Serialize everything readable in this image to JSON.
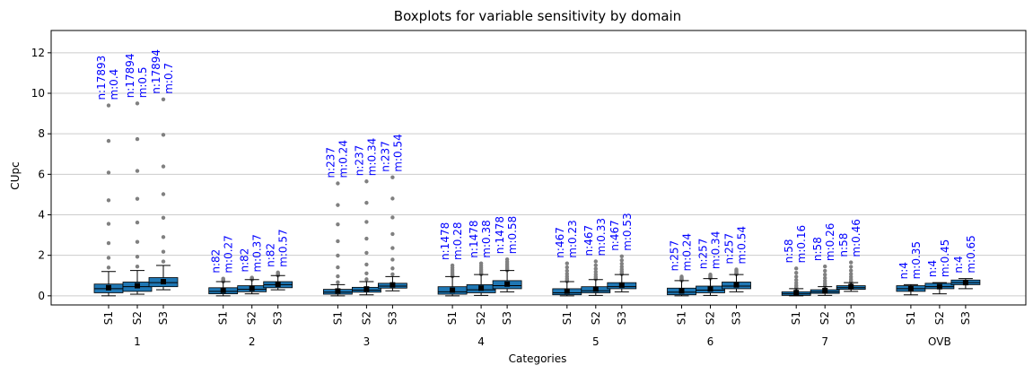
{
  "chart_data": {
    "type": "box",
    "title": "Boxplots for variable sensitivity by domain",
    "xlabel": "Categories",
    "ylabel": "CUpc",
    "ylim": [
      -0.45,
      13.1
    ],
    "yticks": [
      0,
      2,
      4,
      6,
      8,
      10,
      12
    ],
    "grid": "y",
    "categories": [
      "1",
      "2",
      "3",
      "4",
      "5",
      "6",
      "7",
      "OVB"
    ],
    "series_labels": [
      "S1",
      "S2",
      "S3"
    ],
    "colors": {
      "box": "#1f77b4",
      "outlier": "#808080",
      "mean_marker": "#000000",
      "annotation": "#0000ff",
      "grid": "#cccccc"
    },
    "groups": [
      {
        "category": "1",
        "boxes": [
          {
            "series": "S1",
            "n": "17893",
            "m": "0.4",
            "q1": 0.15,
            "median": 0.35,
            "q3": 0.58,
            "whisker_low": 0.0,
            "whisker_high": 1.2,
            "outlier_max": 9.4
          },
          {
            "series": "S2",
            "n": "17894",
            "m": "0.5",
            "q1": 0.22,
            "median": 0.45,
            "q3": 0.68,
            "whisker_low": 0.08,
            "whisker_high": 1.25,
            "outlier_max": 9.5
          },
          {
            "series": "S3",
            "n": "17894",
            "m": "0.7",
            "q1": 0.45,
            "median": 0.65,
            "q3": 0.9,
            "whisker_low": 0.3,
            "whisker_high": 1.5,
            "outlier_max": 9.7
          }
        ]
      },
      {
        "category": "2",
        "boxes": [
          {
            "series": "S1",
            "n": "82",
            "m": "0.27",
            "q1": 0.1,
            "median": 0.22,
            "q3": 0.4,
            "whisker_low": 0.0,
            "whisker_high": 0.7,
            "outlier_max": 0.85
          },
          {
            "series": "S2",
            "n": "82",
            "m": "0.37",
            "q1": 0.2,
            "median": 0.32,
            "q3": 0.5,
            "whisker_low": 0.1,
            "whisker_high": 0.8,
            "outlier_max": 0.9
          },
          {
            "series": "S3",
            "n": "82",
            "m": "0.57",
            "q1": 0.4,
            "median": 0.55,
            "q3": 0.7,
            "whisker_low": 0.3,
            "whisker_high": 1.0,
            "outlier_max": 1.15
          }
        ]
      },
      {
        "category": "3",
        "boxes": [
          {
            "series": "S1",
            "n": "237",
            "m": "0.24",
            "q1": 0.08,
            "median": 0.18,
            "q3": 0.32,
            "whisker_low": 0.0,
            "whisker_high": 0.55,
            "outlier_max": 5.55
          },
          {
            "series": "S2",
            "n": "237",
            "m": "0.34",
            "q1": 0.18,
            "median": 0.28,
            "q3": 0.42,
            "whisker_low": 0.05,
            "whisker_high": 0.7,
            "outlier_max": 5.65
          },
          {
            "series": "S3",
            "n": "237",
            "m": "0.54",
            "q1": 0.38,
            "median": 0.48,
            "q3": 0.62,
            "whisker_low": 0.25,
            "whisker_high": 0.95,
            "outlier_max": 5.85
          }
        ]
      },
      {
        "category": "4",
        "boxes": [
          {
            "series": "S1",
            "n": "1478",
            "m": "0.28",
            "q1": 0.08,
            "median": 0.2,
            "q3": 0.45,
            "whisker_low": 0.0,
            "whisker_high": 0.95,
            "outlier_max": 1.5
          },
          {
            "series": "S2",
            "n": "1478",
            "m": "0.38",
            "q1": 0.15,
            "median": 0.3,
            "q3": 0.55,
            "whisker_low": 0.02,
            "whisker_high": 1.05,
            "outlier_max": 1.6
          },
          {
            "series": "S3",
            "n": "1478",
            "m": "0.58",
            "q1": 0.35,
            "median": 0.5,
            "q3": 0.75,
            "whisker_low": 0.2,
            "whisker_high": 1.25,
            "outlier_max": 1.8
          }
        ]
      },
      {
        "category": "5",
        "boxes": [
          {
            "series": "S1",
            "n": "467",
            "m": "0.23",
            "q1": 0.05,
            "median": 0.15,
            "q3": 0.35,
            "whisker_low": 0.0,
            "whisker_high": 0.7,
            "outlier_max": 1.6
          },
          {
            "series": "S2",
            "n": "467",
            "m": "0.33",
            "q1": 0.15,
            "median": 0.25,
            "q3": 0.45,
            "whisker_low": 0.02,
            "whisker_high": 0.8,
            "outlier_max": 1.7
          },
          {
            "series": "S3",
            "n": "467",
            "m": "0.53",
            "q1": 0.35,
            "median": 0.45,
            "q3": 0.65,
            "whisker_low": 0.2,
            "whisker_high": 1.05,
            "outlier_max": 1.95
          }
        ]
      },
      {
        "category": "6",
        "boxes": [
          {
            "series": "S1",
            "n": "257",
            "m": "0.24",
            "q1": 0.05,
            "median": 0.18,
            "q3": 0.38,
            "whisker_low": 0.0,
            "whisker_high": 0.75,
            "outlier_max": 0.95
          },
          {
            "series": "S2",
            "n": "257",
            "m": "0.34",
            "q1": 0.15,
            "median": 0.28,
            "q3": 0.48,
            "whisker_low": 0.02,
            "whisker_high": 0.85,
            "outlier_max": 1.05
          },
          {
            "series": "S3",
            "n": "257",
            "m": "0.54",
            "q1": 0.35,
            "median": 0.48,
            "q3": 0.68,
            "whisker_low": 0.2,
            "whisker_high": 1.05,
            "outlier_max": 1.3
          }
        ]
      },
      {
        "category": "7",
        "boxes": [
          {
            "series": "S1",
            "n": "58",
            "m": "0.16",
            "q1": 0.02,
            "median": 0.1,
            "q3": 0.2,
            "whisker_low": 0.0,
            "whisker_high": 0.35,
            "outlier_max": 1.35
          },
          {
            "series": "S2",
            "n": "58",
            "m": "0.26",
            "q1": 0.12,
            "median": 0.2,
            "q3": 0.3,
            "whisker_low": 0.02,
            "whisker_high": 0.45,
            "outlier_max": 1.45
          },
          {
            "series": "S3",
            "n": "58",
            "m": "0.46",
            "q1": 0.32,
            "median": 0.4,
            "q3": 0.5,
            "whisker_low": 0.22,
            "whisker_high": 0.65,
            "outlier_max": 1.65
          }
        ]
      },
      {
        "category": "OVB",
        "boxes": [
          {
            "series": "S1",
            "n": "4",
            "m": "0.35",
            "q1": 0.22,
            "median": 0.35,
            "q3": 0.5,
            "whisker_low": 0.05,
            "whisker_high": 0.55,
            "outlier_max": null
          },
          {
            "series": "S2",
            "n": "4",
            "m": "0.45",
            "q1": 0.35,
            "median": 0.45,
            "q3": 0.62,
            "whisker_low": 0.1,
            "whisker_high": 0.65,
            "outlier_max": null
          },
          {
            "series": "S3",
            "n": "4",
            "m": "0.65",
            "q1": 0.55,
            "median": 0.65,
            "q3": 0.78,
            "whisker_low": 0.35,
            "whisker_high": 0.85,
            "outlier_max": null
          }
        ]
      }
    ]
  }
}
